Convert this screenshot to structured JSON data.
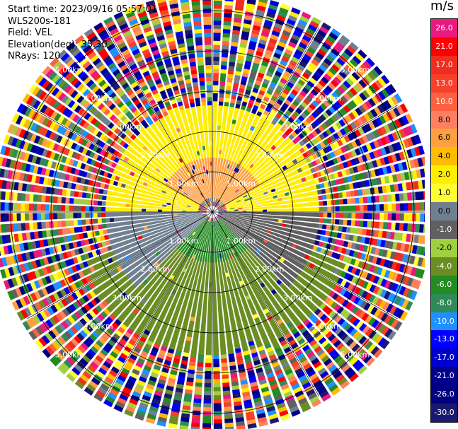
{
  "header": {
    "start_time": "Start time: 2023/09/16 05:57:01",
    "instrument": "WLS200s-181",
    "field": "Field: VEL",
    "elevation": "Elevation(deg): 35.30",
    "nrays": "NRays: 120"
  },
  "colorbar": {
    "unit": "m/s",
    "levels": [
      {
        "value": "26.0",
        "color": "#e8197f",
        "text": "#ffffff"
      },
      {
        "value": "21.0",
        "color": "#ff0000",
        "text": "#ffffff"
      },
      {
        "value": "17.0",
        "color": "#f02d1f",
        "text": "#ffffff"
      },
      {
        "value": "13.0",
        "color": "#f5402c",
        "text": "#ffffff"
      },
      {
        "value": "10.0",
        "color": "#ff6040",
        "text": "#ffffff"
      },
      {
        "value": "8.0",
        "color": "#ff8060",
        "text": "#000000"
      },
      {
        "value": "6.0",
        "color": "#ffa040",
        "text": "#000000"
      },
      {
        "value": "4.0",
        "color": "#ffbb00",
        "text": "#000000"
      },
      {
        "value": "2.0",
        "color": "#ffee00",
        "text": "#000000"
      },
      {
        "value": "1.0",
        "color": "#ffff33",
        "text": "#000000"
      },
      {
        "value": "0.0",
        "color": "#708090",
        "text": "#000000"
      },
      {
        "value": "-1.0",
        "color": "#606060",
        "text": "#ffffff"
      },
      {
        "value": "-2.0",
        "color": "#a0d040",
        "text": "#000000"
      },
      {
        "value": "-4.0",
        "color": "#6b8e23",
        "text": "#ffffff"
      },
      {
        "value": "-6.0",
        "color": "#228b22",
        "text": "#ffffff"
      },
      {
        "value": "-8.0",
        "color": "#2e8b57",
        "text": "#ffffff"
      },
      {
        "value": "-10.0",
        "color": "#1e90ff",
        "text": "#ffffff"
      },
      {
        "value": "-13.0",
        "color": "#0000ff",
        "text": "#ffffff"
      },
      {
        "value": "-17.0",
        "color": "#0000cd",
        "text": "#ffffff"
      },
      {
        "value": "-21.0",
        "color": "#00008b",
        "text": "#ffffff"
      },
      {
        "value": "-26.0",
        "color": "#000080",
        "text": "#ffffff"
      },
      {
        "value": "-30.0",
        "color": "#191970",
        "text": "#ffffff"
      }
    ]
  },
  "chart_data": {
    "type": "heatmap",
    "description_field": "VEL",
    "range_ring_labels": [
      "1.00km",
      "2.00km",
      "3.00km",
      "4.00km",
      "5.00km"
    ],
    "range_rings_km": [
      1,
      2,
      3,
      4,
      5
    ],
    "n_rays": 120,
    "color_scale_ms": [
      26.0,
      21.0,
      17.0,
      13.0,
      10.0,
      8.0,
      6.0,
      4.0,
      2.0,
      1.0,
      0.0,
      -1.0,
      -2.0,
      -4.0,
      -6.0,
      -8.0,
      -10.0,
      -13.0,
      -17.0,
      -21.0,
      -26.0,
      -30.0
    ],
    "sectors": [
      {
        "azimuth_deg": [
          300,
          60
        ],
        "range_km": [
          0.3,
          1.3
        ],
        "velocity_ms": 6.0
      },
      {
        "azimuth_deg": [
          270,
          90
        ],
        "range_km": [
          0.3,
          2.6
        ],
        "velocity_ms": 2.0
      },
      {
        "azimuth_deg": [
          90,
          135
        ],
        "range_km": [
          0.2,
          2.6
        ],
        "velocity_ms": -1.0
      },
      {
        "azimuth_deg": [
          225,
          270
        ],
        "range_km": [
          0.2,
          2.6
        ],
        "velocity_ms": 0.0
      },
      {
        "azimuth_deg": [
          135,
          225
        ],
        "range_km": [
          0.2,
          1.2
        ],
        "velocity_ms": -6.0
      },
      {
        "azimuth_deg": [
          110,
          250
        ],
        "range_km": [
          1.2,
          3.5
        ],
        "velocity_ms": -4.0
      },
      {
        "azimuth_deg": [
          0,
          360
        ],
        "range_km": [
          3.5,
          7.0
        ],
        "velocity_ms": "noise"
      }
    ]
  }
}
